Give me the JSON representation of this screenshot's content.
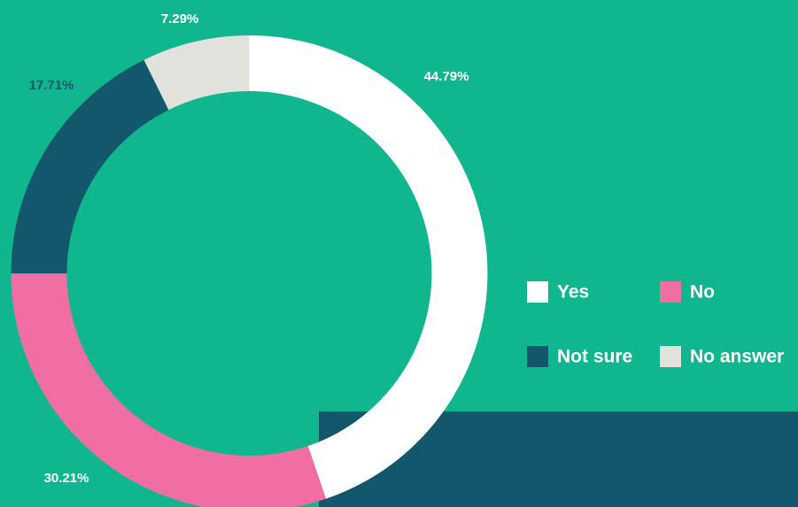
{
  "chart_data": {
    "type": "pie",
    "categories": [
      "Yes",
      "No",
      "Not sure",
      "No answer"
    ],
    "values": [
      44.79,
      30.21,
      17.71,
      7.29
    ],
    "value_labels": [
      "44.79%",
      "30.21%",
      "17.71%",
      "7.29%"
    ],
    "colors": [
      "#ffffff",
      "#f06ea2",
      "#12576c",
      "#e2e2dc"
    ],
    "legend": "right"
  }
}
